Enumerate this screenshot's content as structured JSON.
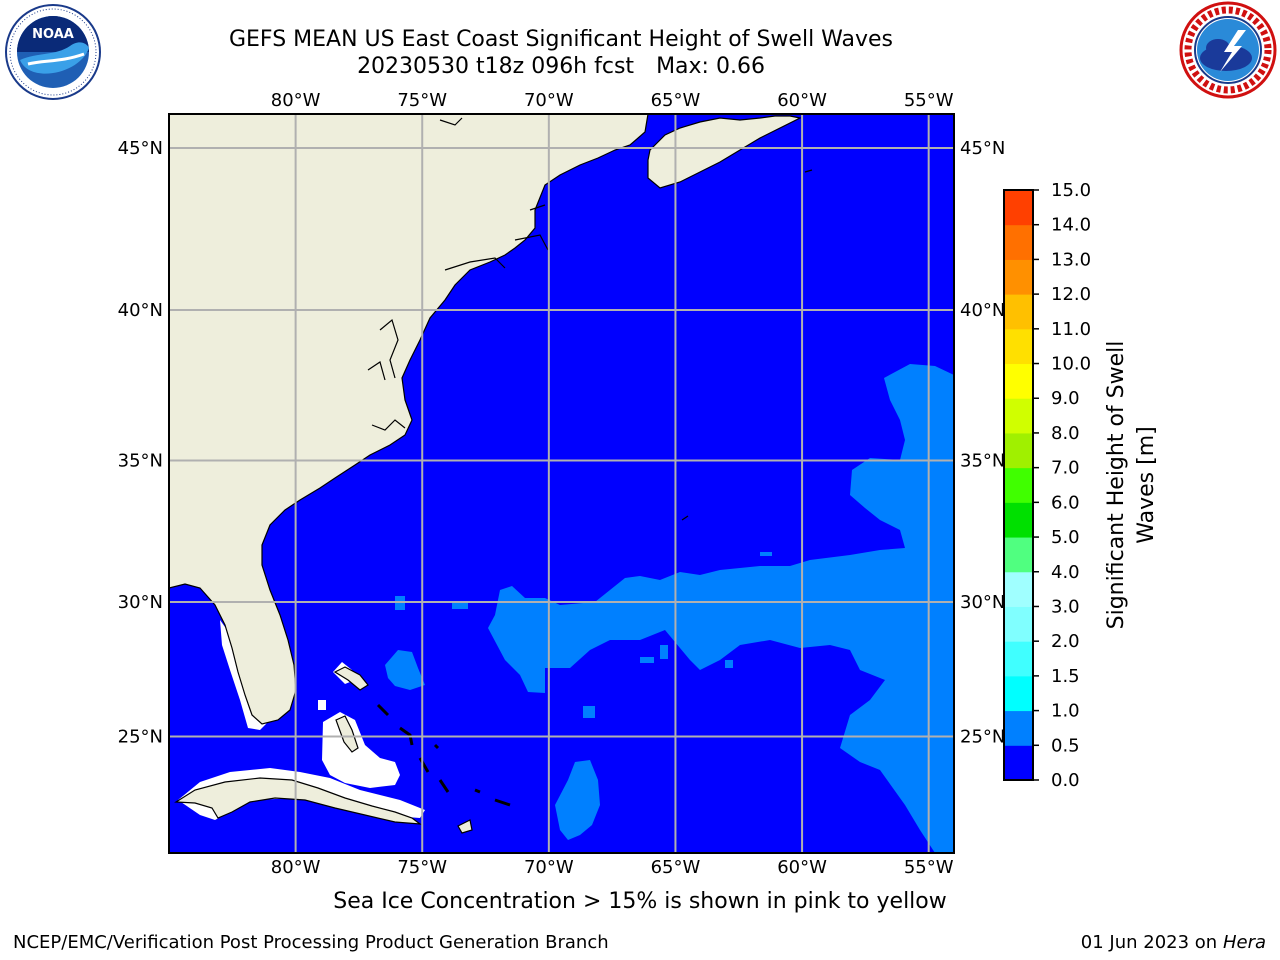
{
  "title": {
    "line1": "GEFS MEAN US East Coast Significant Height of Swell Waves",
    "run": "20230530 t18z 096h fcst",
    "max": "Max: 0.66"
  },
  "logos": {
    "left": {
      "icon": "noaa-logo",
      "text": "NOAA",
      "ring_text": "NATIONAL OCEANIC AND ATMOSPHERIC ADMINISTRATION • U.S. DEPARTMENT OF COMMERCE"
    },
    "right": {
      "icon": "nws-logo",
      "ring_text": "NATIONAL WEATHER SERVICE"
    }
  },
  "map": {
    "extent": {
      "lon_min": -85,
      "lon_max": -54,
      "lat_min": 20.5,
      "lat_max": 46
    },
    "lon_ticks": [
      -80,
      -75,
      -70,
      -65,
      -60,
      -55
    ],
    "lon_labels": [
      "80°W",
      "75°W",
      "70°W",
      "65°W",
      "60°W",
      "55°W"
    ],
    "lat_ticks": [
      45,
      40,
      35,
      30,
      25
    ],
    "lat_labels": [
      "45°N",
      "40°N",
      "35°N",
      "30°N",
      "25°N"
    ],
    "gridlines": true,
    "colors": {
      "land": "#eeeedc",
      "ocean_0_0.5": "#0000ff",
      "swell_0.5_1.0": "#0080ff",
      "no_data": "#ffffff",
      "grid": "#b0b0b0",
      "coast": "#000000"
    }
  },
  "colorbar": {
    "label_line1": "Significant Height of Swell",
    "label_line2": "Waves [m]",
    "tick_labels": [
      "0.0",
      "0.5",
      "1.0",
      "1.5",
      "2.0",
      "3.0",
      "4.0",
      "5.0",
      "6.0",
      "7.0",
      "8.0",
      "9.0",
      "10.0",
      "11.0",
      "12.0",
      "13.0",
      "14.0",
      "15.0"
    ],
    "colors": [
      "#0000ff",
      "#0080ff",
      "#00ffff",
      "#40ffff",
      "#80ffff",
      "#a0ffff",
      "#50ff80",
      "#00e000",
      "#40ff00",
      "#a0f000",
      "#d0ff00",
      "#ffff00",
      "#ffe000",
      "#ffc000",
      "#ff9000",
      "#ff7000",
      "#ff4000",
      "#ff0000"
    ]
  },
  "notes": {
    "sea_ice": "Sea Ice Concentration > 15% is shown in pink to yellow"
  },
  "footer": {
    "left": "NCEP/EMC/Verification Post Processing Product Generation Branch",
    "date": "01 Jun 2023 on",
    "machine": "Hera"
  }
}
